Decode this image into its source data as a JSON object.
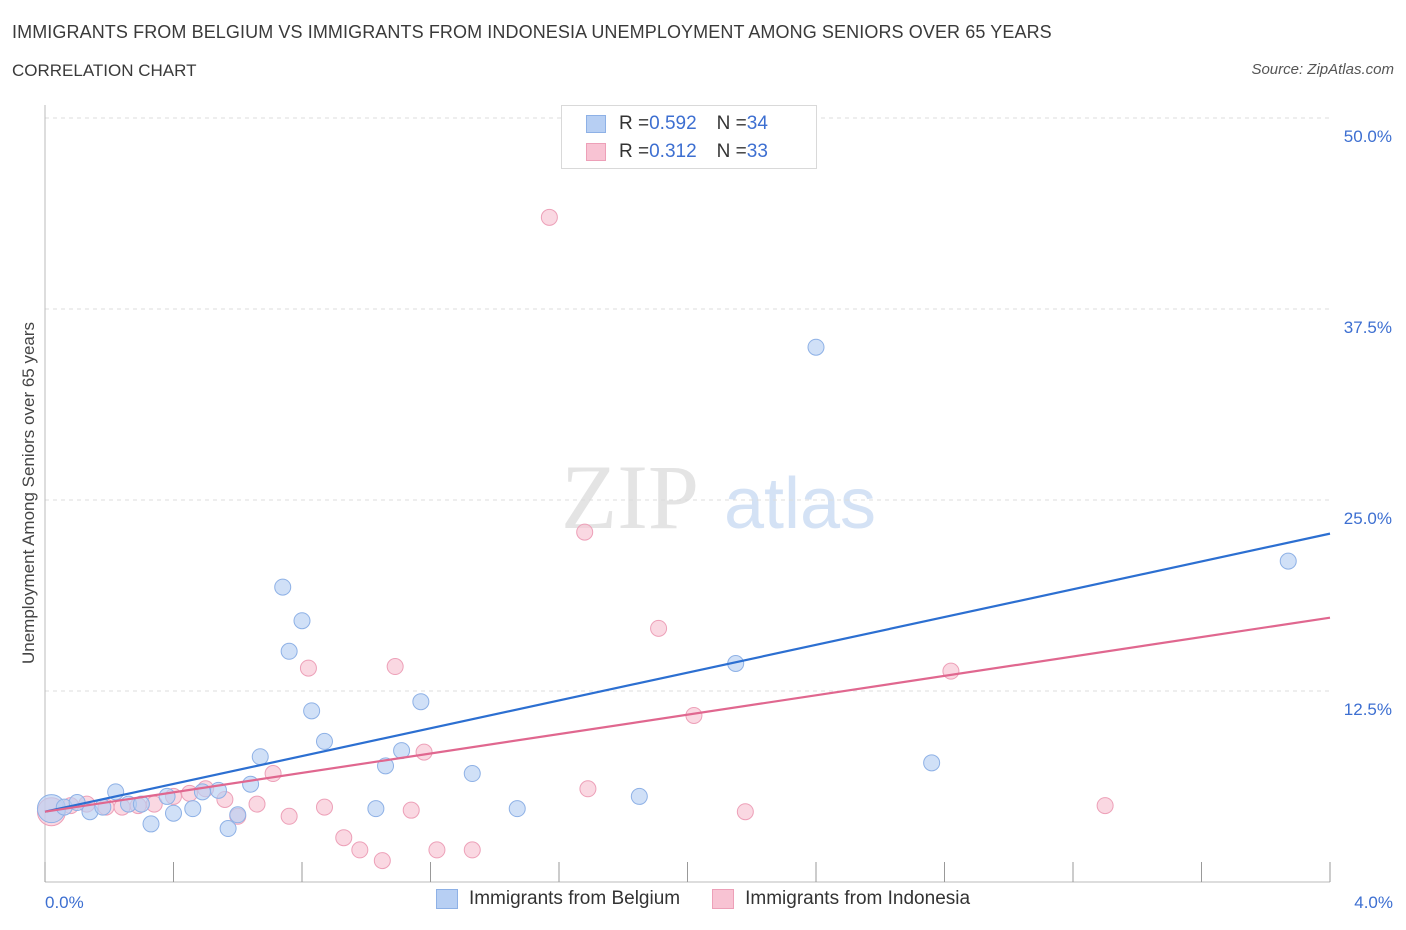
{
  "header": {
    "title": "IMMIGRANTS FROM BELGIUM VS IMMIGRANTS FROM INDONESIA UNEMPLOYMENT AMONG SENIORS OVER 65 YEARS",
    "subtitle": "CORRELATION CHART",
    "source": "Source: ZipAtlas.com"
  },
  "watermark": {
    "zip": "ZIP",
    "atlas": "atlas"
  },
  "stats": [
    {
      "r_label": "R = ",
      "r_value": "0.592",
      "n_label": "N = ",
      "n_value": "34"
    },
    {
      "r_label": "R = ",
      "r_value": " 0.312",
      "n_label": "N = ",
      "n_value": "33"
    }
  ],
  "legend": {
    "belgium": "Immigrants from Belgium",
    "indonesia": "Immigrants from Indonesia"
  },
  "colors": {
    "belgium_fill": "#b7cff3",
    "belgium_stroke": "#8eb1e6",
    "belgium_line": "#2c6fd1",
    "indonesia_fill": "#f8c3d3",
    "indonesia_stroke": "#eda0b8",
    "indonesia_line": "#e0678f",
    "tick_label": "#3d6fd1",
    "grid": "#dddddd"
  },
  "chart_data": {
    "type": "scatter",
    "title": "IMMIGRANTS FROM BELGIUM VS IMMIGRANTS FROM INDONESIA UNEMPLOYMENT AMONG SENIORS OVER 65 YEARS",
    "xlabel": "",
    "ylabel": "Unemployment Among Seniors over 65 years",
    "xlim": [
      0,
      4.0
    ],
    "ylim": [
      0,
      50.0
    ],
    "x_tick_labels": [
      "0.0%",
      "4.0%"
    ],
    "y_ticks": [
      12.5,
      25.0,
      37.5,
      50.0
    ],
    "y_tick_labels": [
      "12.5%",
      "25.0%",
      "37.5%",
      "50.0%"
    ],
    "grid": true,
    "legend_position": "bottom-center",
    "series": [
      {
        "name": "Immigrants from Belgium",
        "r": 0.592,
        "n": 34,
        "trend": {
          "x": [
            0.0,
            4.0
          ],
          "y": [
            4.6,
            22.8
          ]
        },
        "points": [
          {
            "x": 0.02,
            "y": 4.8,
            "big": true
          },
          {
            "x": 0.06,
            "y": 4.9
          },
          {
            "x": 0.1,
            "y": 5.2
          },
          {
            "x": 0.14,
            "y": 4.6
          },
          {
            "x": 0.18,
            "y": 4.9
          },
          {
            "x": 0.22,
            "y": 5.9
          },
          {
            "x": 0.26,
            "y": 5.1
          },
          {
            "x": 0.3,
            "y": 5.1
          },
          {
            "x": 0.33,
            "y": 3.8
          },
          {
            "x": 0.38,
            "y": 5.6
          },
          {
            "x": 0.4,
            "y": 4.5
          },
          {
            "x": 0.46,
            "y": 4.8
          },
          {
            "x": 0.49,
            "y": 5.9
          },
          {
            "x": 0.54,
            "y": 6.0
          },
          {
            "x": 0.57,
            "y": 3.5
          },
          {
            "x": 0.6,
            "y": 4.4
          },
          {
            "x": 0.64,
            "y": 6.4
          },
          {
            "x": 0.67,
            "y": 8.2
          },
          {
            "x": 0.74,
            "y": 19.3
          },
          {
            "x": 0.76,
            "y": 15.1
          },
          {
            "x": 0.8,
            "y": 17.1
          },
          {
            "x": 0.83,
            "y": 11.2
          },
          {
            "x": 0.87,
            "y": 9.2
          },
          {
            "x": 1.03,
            "y": 4.8
          },
          {
            "x": 1.06,
            "y": 7.6
          },
          {
            "x": 1.11,
            "y": 8.6
          },
          {
            "x": 1.17,
            "y": 11.8
          },
          {
            "x": 1.33,
            "y": 7.1
          },
          {
            "x": 1.47,
            "y": 4.8
          },
          {
            "x": 1.85,
            "y": 5.6
          },
          {
            "x": 2.15,
            "y": 14.3
          },
          {
            "x": 2.4,
            "y": 35.0
          },
          {
            "x": 2.76,
            "y": 7.8
          },
          {
            "x": 3.87,
            "y": 21.0
          }
        ]
      },
      {
        "name": "Immigrants from Indonesia",
        "r": 0.312,
        "n": 33,
        "trend": {
          "x": [
            0.0,
            4.0
          ],
          "y": [
            4.6,
            17.3
          ]
        },
        "points": [
          {
            "x": 0.02,
            "y": 4.6,
            "big": true
          },
          {
            "x": 0.08,
            "y": 5.0
          },
          {
            "x": 0.13,
            "y": 5.1
          },
          {
            "x": 0.19,
            "y": 4.9
          },
          {
            "x": 0.24,
            "y": 4.9
          },
          {
            "x": 0.29,
            "y": 5.0
          },
          {
            "x": 0.34,
            "y": 5.1
          },
          {
            "x": 0.4,
            "y": 5.6
          },
          {
            "x": 0.45,
            "y": 5.8
          },
          {
            "x": 0.5,
            "y": 6.1
          },
          {
            "x": 0.56,
            "y": 5.4
          },
          {
            "x": 0.6,
            "y": 4.3
          },
          {
            "x": 0.66,
            "y": 5.1
          },
          {
            "x": 0.71,
            "y": 7.1
          },
          {
            "x": 0.76,
            "y": 4.3
          },
          {
            "x": 0.82,
            "y": 14.0
          },
          {
            "x": 0.87,
            "y": 4.9
          },
          {
            "x": 0.93,
            "y": 2.9
          },
          {
            "x": 0.98,
            "y": 2.1
          },
          {
            "x": 1.05,
            "y": 1.4
          },
          {
            "x": 1.09,
            "y": 14.1
          },
          {
            "x": 1.14,
            "y": 4.7
          },
          {
            "x": 1.18,
            "y": 8.5
          },
          {
            "x": 1.22,
            "y": 2.1
          },
          {
            "x": 1.33,
            "y": 2.1
          },
          {
            "x": 1.57,
            "y": 43.5
          },
          {
            "x": 1.68,
            "y": 22.9
          },
          {
            "x": 1.69,
            "y": 6.1
          },
          {
            "x": 1.91,
            "y": 16.6
          },
          {
            "x": 2.02,
            "y": 10.9
          },
          {
            "x": 2.18,
            "y": 4.6
          },
          {
            "x": 2.82,
            "y": 13.8
          },
          {
            "x": 3.3,
            "y": 5.0
          }
        ]
      }
    ]
  }
}
